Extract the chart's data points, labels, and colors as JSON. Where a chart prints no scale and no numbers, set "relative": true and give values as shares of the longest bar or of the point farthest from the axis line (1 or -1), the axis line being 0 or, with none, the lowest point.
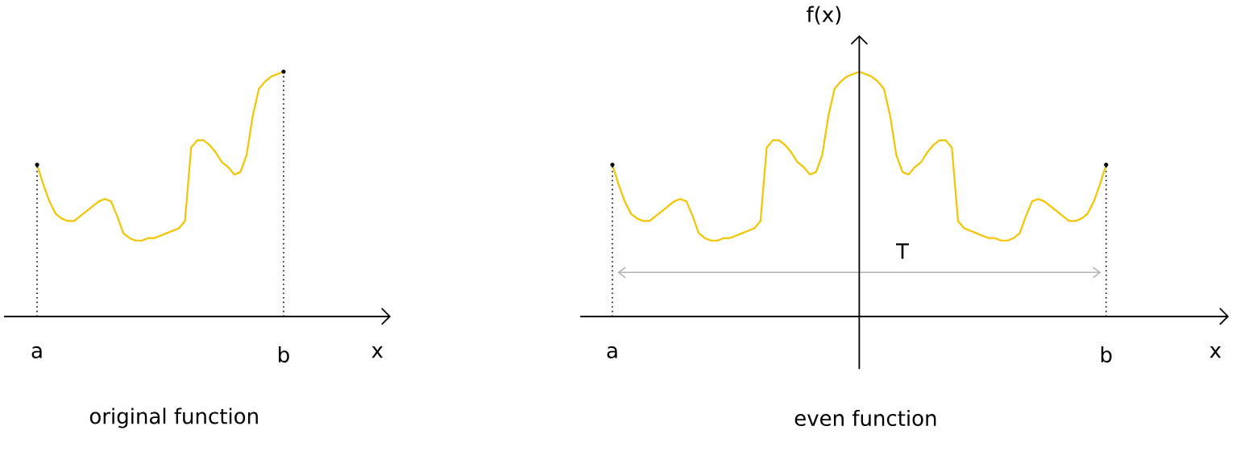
{
  "chart_data": [
    {
      "type": "line",
      "title": "original function",
      "xlabel": "x",
      "relative": true,
      "color": "#f5c400",
      "categories": [
        "a",
        null,
        null,
        null,
        null,
        null,
        null,
        null,
        null,
        null,
        null,
        null,
        null,
        null,
        null,
        null,
        null,
        null,
        null,
        null,
        null,
        null,
        null,
        null,
        null,
        null,
        null,
        null,
        null,
        null,
        null,
        null,
        null,
        null,
        null,
        null,
        null,
        null,
        null,
        null,
        "b"
      ],
      "values": [
        0.62,
        0.54,
        0.47,
        0.42,
        0.4,
        0.39,
        0.39,
        0.41,
        0.43,
        0.45,
        0.47,
        0.48,
        0.47,
        0.41,
        0.34,
        0.32,
        0.31,
        0.31,
        0.32,
        0.32,
        0.33,
        0.34,
        0.35,
        0.36,
        0.39,
        0.69,
        0.72,
        0.72,
        0.7,
        0.67,
        0.63,
        0.61,
        0.58,
        0.59,
        0.66,
        0.82,
        0.93,
        0.96,
        0.98,
        0.99,
        1
      ],
      "ref_lines": [
        {
          "axis": "x",
          "value": "a",
          "color": "#000000",
          "line_style": "dotted"
        },
        {
          "axis": "x",
          "value": "b",
          "color": "#000000",
          "line_style": "dotted"
        }
      ]
    },
    {
      "type": "line",
      "title": "even function",
      "xlabel": "x",
      "ylabel": "f(x)",
      "relative": true,
      "categories": [
        "a",
        null,
        null,
        null,
        null,
        null,
        null,
        null,
        null,
        null,
        null,
        null,
        null,
        null,
        null,
        null,
        null,
        null,
        null,
        null,
        null,
        null,
        null,
        null,
        null,
        null,
        null,
        null,
        null,
        null,
        null,
        null,
        null,
        null,
        null,
        null,
        null,
        null,
        null,
        null,
        null,
        null,
        null,
        null,
        null,
        null,
        null,
        null,
        null,
        null,
        null,
        null,
        null,
        null,
        null,
        null,
        null,
        null,
        null,
        null,
        null,
        null,
        null,
        null,
        null,
        null,
        null,
        null,
        null,
        null,
        null,
        null,
        null,
        null,
        null,
        null,
        null,
        null,
        null,
        null,
        "b"
      ],
      "series": [
        {
          "color": "#f5c400",
          "values": [
            0.62,
            0.54,
            0.47,
            0.42,
            0.4,
            0.39,
            0.39,
            0.41,
            0.43,
            0.45,
            0.47,
            0.48,
            0.47,
            0.41,
            0.34,
            0.32,
            0.31,
            0.31,
            0.32,
            0.32,
            0.33,
            0.34,
            0.35,
            0.36,
            0.39,
            0.69,
            0.72,
            0.72,
            0.7,
            0.67,
            0.63,
            0.61,
            0.58,
            0.59,
            0.66,
            0.82,
            0.93,
            0.96,
            0.98,
            0.99,
            1,
            0.99,
            0.98,
            0.96,
            0.93,
            0.82,
            0.66,
            0.59,
            0.58,
            0.61,
            0.63,
            0.67,
            0.7,
            0.72,
            0.72,
            0.69,
            0.39,
            0.36,
            0.35,
            0.34,
            0.33,
            0.32,
            0.32,
            0.31,
            0.31,
            0.32,
            0.34,
            0.41,
            0.47,
            0.48,
            0.47,
            0.45,
            0.43,
            0.41,
            0.39,
            0.39,
            0.4,
            0.42,
            0.47,
            0.54,
            0.62
          ]
        },
        {
          "name": "T",
          "color": "#b2b2b2",
          "values": [
            null,
            0.18,
            0.18,
            0.18,
            0.18,
            0.18,
            0.18,
            0.18,
            0.18,
            0.18,
            0.18,
            0.18,
            0.18,
            0.18,
            0.18,
            0.18,
            0.18,
            0.18,
            0.18,
            0.18,
            0.18,
            0.18,
            0.18,
            0.18,
            0.18,
            0.18,
            0.18,
            0.18,
            0.18,
            0.18,
            0.18,
            0.18,
            0.18,
            0.18,
            0.18,
            0.18,
            0.18,
            0.18,
            0.18,
            0.18,
            0.18,
            0.18,
            0.18,
            0.18,
            0.18,
            0.18,
            0.18,
            0.18,
            0.18,
            0.18,
            0.18,
            0.18,
            0.18,
            0.18,
            0.18,
            0.18,
            0.18,
            0.18,
            0.18,
            0.18,
            0.18,
            0.18,
            0.18,
            0.18,
            0.18,
            0.18,
            0.18,
            0.18,
            0.18,
            0.18,
            0.18,
            0.18,
            0.18,
            0.18,
            0.18,
            0.18,
            0.18,
            0.18,
            0.18,
            0.18,
            null
          ]
        }
      ],
      "ref_lines": [
        {
          "axis": "x",
          "value": "a",
          "color": "#000000",
          "line_style": "dotted"
        },
        {
          "axis": "x",
          "value": "b",
          "color": "#000000",
          "line_style": "dotted"
        }
      ]
    }
  ]
}
